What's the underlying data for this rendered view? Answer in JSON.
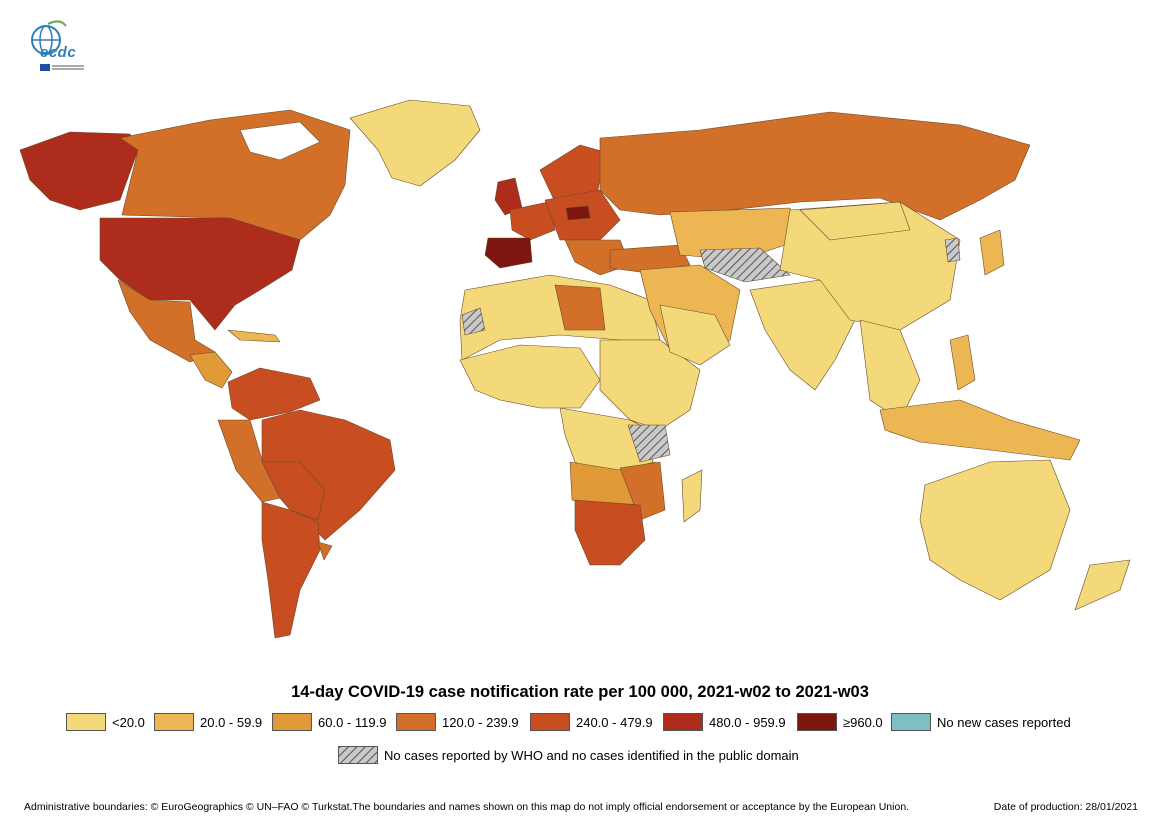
{
  "logo": {
    "text": "ecdc"
  },
  "title": "14-day COVID-19 case notification rate per 100 000, 2021-w02 to 2021-w03",
  "legend": [
    {
      "label": "<20.0",
      "color": "#f3d97a"
    },
    {
      "label": "20.0 - 59.9",
      "color": "#ecb753"
    },
    {
      "label": "60.0 - 119.9",
      "color": "#e09a37"
    },
    {
      "label": "120.0 - 239.9",
      "color": "#d2702a"
    },
    {
      "label": "240.0 - 479.9",
      "color": "#c84d21"
    },
    {
      "label": "480.0 - 959.9",
      "color": "#ad2c1b"
    },
    {
      "label": "≥960.0",
      "color": "#7d1610"
    },
    {
      "label": "No new cases reported",
      "color": "#7fbfc4"
    }
  ],
  "nodata_label": "No cases reported by WHO and no cases identified in the public domain",
  "footer": {
    "left": "Administrative boundaries: © EuroGeographics © UN–FAO © Turkstat.The boundaries and names shown on this map do not imply official endorsement or acceptance by the European Union.",
    "right": "Date of production: 28/01/2021"
  }
}
